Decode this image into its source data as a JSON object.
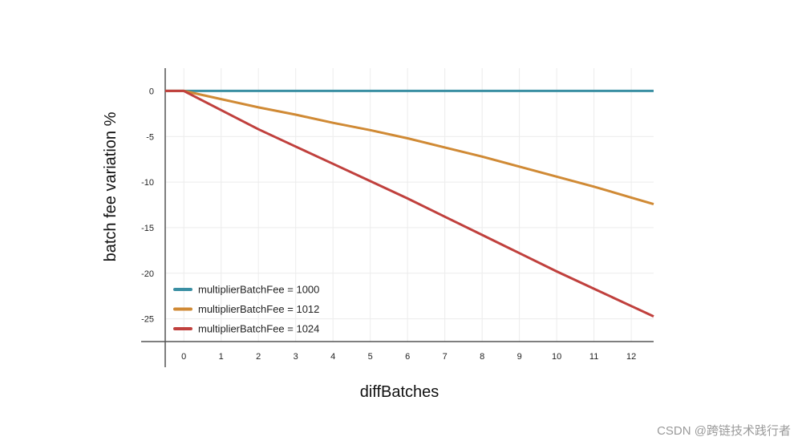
{
  "chart_data": {
    "type": "line",
    "xlabel": "diffBatches",
    "ylabel": "batch fee variation %",
    "x": [
      0,
      1,
      2,
      3,
      4,
      5,
      6,
      7,
      8,
      9,
      10,
      11,
      12
    ],
    "xticks": [
      "0",
      "1",
      "2",
      "3",
      "4",
      "5",
      "6",
      "7",
      "8",
      "9",
      "10",
      "11",
      "12"
    ],
    "yticks": [
      "0",
      "-5",
      "-10",
      "-15",
      "-20",
      "-25"
    ],
    "ytick_values": [
      0,
      -5,
      -10,
      -15,
      -20,
      -25
    ],
    "xlim": [
      -0.5,
      12.6
    ],
    "ylim": [
      -27.5,
      2.5
    ],
    "grid": true,
    "legend": "bottom-left",
    "series": [
      {
        "name": "multiplierBatchFee = 1000",
        "color": "#3a8fa3",
        "values": [
          0,
          0,
          0,
          0,
          0,
          0,
          0,
          0,
          0,
          0,
          0,
          0,
          0
        ]
      },
      {
        "name": "multiplierBatchFee = 1012",
        "color": "#d08a35",
        "values": [
          0,
          -0.9,
          -1.8,
          -2.6,
          -3.5,
          -4.3,
          -5.2,
          -6.2,
          -7.2,
          -8.3,
          -9.4,
          -10.5,
          -11.7
        ]
      },
      {
        "name": "multiplierBatchFee = 1024",
        "color": "#c0403d",
        "values": [
          0,
          -2.1,
          -4.2,
          -6.1,
          -8.0,
          -9.9,
          -11.8,
          -13.8,
          -15.8,
          -17.8,
          -19.8,
          -21.7,
          -23.6
        ]
      }
    ]
  },
  "watermark": "CSDN @跨链技术践行者"
}
